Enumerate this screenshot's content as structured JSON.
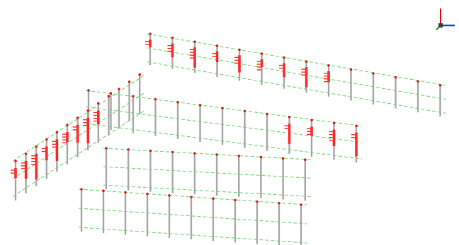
{
  "viewport": {
    "background": "#ffffff",
    "view": "isometric-3d"
  },
  "structure": {
    "type": "multi-storey steel frame wireframe with member force diagrams",
    "frame_count": 5,
    "column_color": "#a9a9a9",
    "beam_color": "#7bdc7b",
    "force_diagram_color": "#ff2d2d",
    "joint_color": "#e02020"
  },
  "axis_triad": {
    "labels": [
      "",
      "",
      ""
    ],
    "colors": {
      "x": "#1f4fd6",
      "y": "#18a018",
      "z": "#e02020"
    }
  }
}
